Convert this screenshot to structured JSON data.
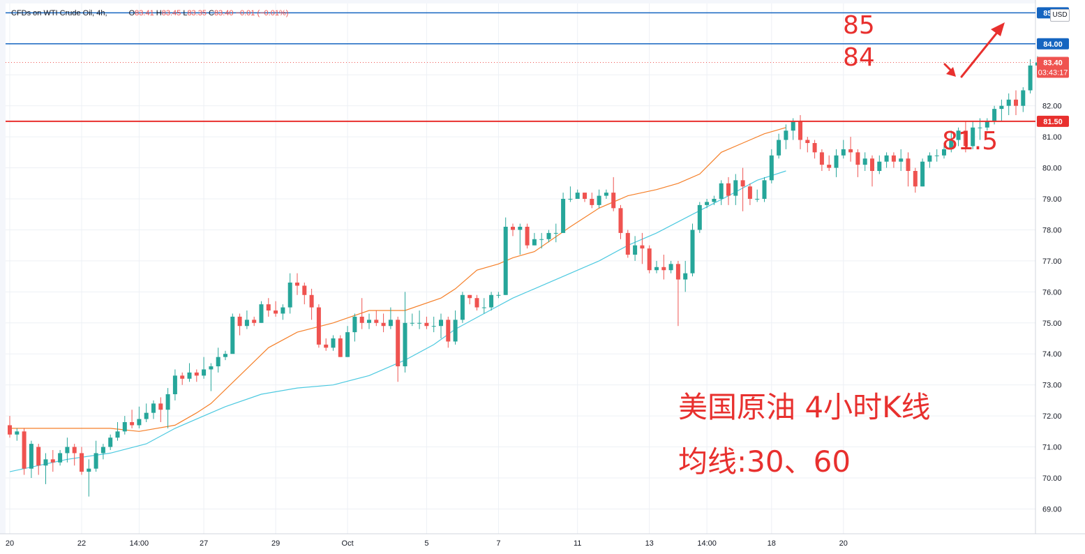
{
  "header": {
    "symbol": "CFDs on WTI Crude Oil, 4h,",
    "o_label": "O",
    "o_value": "83.41",
    "h_label": "H",
    "h_value": "83.45",
    "l_label": "L",
    "l_value": "83.35",
    "c_label": "C",
    "c_value": "83.40",
    "change": "−0.01 (−0.01%)"
  },
  "currency_label": "USD",
  "annotations": {
    "level_85": "85",
    "level_84": "84",
    "level_81_5": "81.5",
    "title_line1": "美国原油 4小时K线",
    "title_line2": "均线:30、60"
  },
  "price_tags": {
    "top_line": "85.00",
    "line_84": "84.00",
    "last_price": "83.40",
    "countdown": "03:43:17",
    "line_81_5": "81.50"
  },
  "colors": {
    "up": "#26a69a",
    "down": "#ef5350",
    "ma30": "#f57f28",
    "ma60": "#4cc9e0",
    "h_line_blue": "#1565c0",
    "h_line_red": "#e8302e",
    "annotation": "#e8302e"
  },
  "chart_data": {
    "type": "candlestick",
    "symbol": "CFDs on WTI Crude Oil",
    "timeframe": "4h",
    "y_axis": {
      "ticks": [
        "69.00",
        "70.00",
        "71.00",
        "72.00",
        "73.00",
        "74.00",
        "75.00",
        "76.00",
        "77.00",
        "78.00",
        "79.00",
        "80.00",
        "81.00",
        "82.00",
        "83.00"
      ],
      "range": [
        68.2,
        85.3
      ]
    },
    "x_axis": {
      "ticks": [
        {
          "label": "20",
          "index": 0
        },
        {
          "label": "22",
          "index": 10
        },
        {
          "label": "14:00",
          "index": 18
        },
        {
          "label": "27",
          "index": 27
        },
        {
          "label": "29",
          "index": 37
        },
        {
          "label": "Oct",
          "index": 47
        },
        {
          "label": "5",
          "index": 58
        },
        {
          "label": "7",
          "index": 68
        },
        {
          "label": "11",
          "index": 79
        },
        {
          "label": "13",
          "index": 89
        },
        {
          "label": "14:00",
          "index": 97
        },
        {
          "label": "18",
          "index": 106
        },
        {
          "label": "20",
          "index": 116
        }
      ]
    },
    "horizontal_lines": [
      {
        "value": 85.0,
        "color": "blue"
      },
      {
        "value": 84.0,
        "color": "blue"
      },
      {
        "value": 81.5,
        "color": "red"
      }
    ],
    "last_price": 83.4,
    "moving_averages": [
      {
        "period": 30,
        "color": "orange",
        "points": [
          [
            0,
            71.6
          ],
          [
            10,
            71.6
          ],
          [
            14,
            71.6
          ],
          [
            18,
            71.5
          ],
          [
            23,
            71.7
          ],
          [
            26,
            72.1
          ],
          [
            28,
            72.4
          ],
          [
            32,
            73.3
          ],
          [
            36,
            74.2
          ],
          [
            40,
            74.7
          ],
          [
            45,
            75.0
          ],
          [
            50,
            75.4
          ],
          [
            55,
            75.4
          ],
          [
            60,
            75.8
          ],
          [
            62,
            76.1
          ],
          [
            65,
            76.7
          ],
          [
            68,
            76.9
          ],
          [
            70,
            77.1
          ],
          [
            73,
            77.3
          ],
          [
            78,
            78.1
          ],
          [
            82,
            78.7
          ],
          [
            86,
            79.1
          ],
          [
            90,
            79.3
          ],
          [
            93,
            79.5
          ],
          [
            96,
            79.8
          ],
          [
            99,
            80.5
          ],
          [
            102,
            80.8
          ],
          [
            105,
            81.1
          ],
          [
            108,
            81.3
          ]
        ]
      },
      {
        "period": 60,
        "color": "cyan",
        "points": [
          [
            0,
            70.2
          ],
          [
            8,
            70.6
          ],
          [
            14,
            70.8
          ],
          [
            19,
            71.1
          ],
          [
            23,
            71.6
          ],
          [
            27,
            72.0
          ],
          [
            30,
            72.3
          ],
          [
            35,
            72.7
          ],
          [
            40,
            72.9
          ],
          [
            45,
            73.0
          ],
          [
            50,
            73.3
          ],
          [
            55,
            73.8
          ],
          [
            59,
            74.3
          ],
          [
            62,
            74.8
          ],
          [
            66,
            75.3
          ],
          [
            70,
            75.8
          ],
          [
            73,
            76.1
          ],
          [
            78,
            76.6
          ],
          [
            82,
            77.0
          ],
          [
            86,
            77.5
          ],
          [
            90,
            77.9
          ],
          [
            95,
            78.5
          ],
          [
            100,
            79.1
          ],
          [
            104,
            79.6
          ],
          [
            108,
            79.9
          ]
        ]
      }
    ],
    "candles": [
      [
        71.7,
        71.4,
        72.0,
        71.3
      ],
      [
        71.4,
        71.5,
        71.6,
        71.2
      ],
      [
        71.5,
        70.3,
        71.6,
        70.1
      ],
      [
        70.3,
        71.1,
        71.2,
        70.0
      ],
      [
        71.0,
        70.4,
        71.1,
        70.1
      ],
      [
        70.4,
        70.6,
        70.8,
        69.8
      ],
      [
        70.6,
        70.5,
        70.9,
        70.2
      ],
      [
        70.5,
        70.8,
        70.9,
        70.4
      ],
      [
        70.8,
        71.0,
        71.3,
        70.5
      ],
      [
        71.0,
        70.8,
        71.1,
        70.4
      ],
      [
        70.8,
        70.2,
        71.0,
        70.1
      ],
      [
        70.2,
        70.3,
        70.6,
        69.4
      ],
      [
        70.3,
        70.8,
        71.2,
        70.2
      ],
      [
        70.8,
        71.0,
        71.1,
        70.6
      ],
      [
        71.0,
        71.3,
        71.4,
        70.9
      ],
      [
        71.3,
        71.5,
        71.8,
        71.2
      ],
      [
        71.5,
        71.8,
        72.0,
        71.4
      ],
      [
        71.8,
        71.7,
        72.2,
        71.6
      ],
      [
        71.7,
        71.9,
        72.3,
        71.6
      ],
      [
        71.9,
        72.1,
        72.4,
        71.8
      ],
      [
        72.1,
        72.4,
        72.5,
        71.9
      ],
      [
        72.4,
        72.2,
        72.6,
        71.8
      ],
      [
        72.2,
        72.7,
        72.9,
        71.6
      ],
      [
        72.7,
        73.3,
        73.5,
        72.5
      ],
      [
        73.3,
        73.2,
        73.4,
        73.0
      ],
      [
        73.2,
        73.4,
        73.7,
        73.1
      ],
      [
        73.4,
        73.3,
        73.5,
        73.1
      ],
      [
        73.3,
        73.5,
        73.9,
        73.2
      ],
      [
        73.5,
        73.6,
        73.7,
        72.8
      ],
      [
        73.6,
        73.9,
        74.2,
        73.4
      ],
      [
        73.9,
        74.0,
        74.1,
        73.8
      ],
      [
        74.0,
        75.2,
        75.3,
        74.1
      ],
      [
        75.2,
        74.9,
        75.3,
        74.6
      ],
      [
        74.9,
        75.1,
        75.4,
        74.8
      ],
      [
        75.1,
        75.0,
        75.2,
        74.9
      ],
      [
        75.0,
        75.6,
        75.7,
        75.0
      ],
      [
        75.6,
        75.4,
        75.8,
        75.2
      ],
      [
        75.4,
        75.3,
        75.7,
        75.2
      ],
      [
        75.3,
        75.5,
        75.6,
        75.1
      ],
      [
        75.5,
        76.3,
        76.6,
        75.3
      ],
      [
        76.3,
        76.2,
        76.6,
        75.9
      ],
      [
        76.2,
        75.9,
        76.3,
        75.6
      ],
      [
        75.9,
        75.5,
        76.1,
        75.1
      ],
      [
        75.5,
        74.3,
        75.6,
        74.2
      ],
      [
        74.3,
        74.2,
        74.5,
        74.1
      ],
      [
        74.2,
        74.5,
        74.6,
        74.1
      ],
      [
        74.5,
        73.9,
        74.6,
        73.9
      ],
      [
        73.9,
        74.7,
        74.9,
        73.9
      ],
      [
        74.7,
        75.2,
        75.3,
        74.4
      ],
      [
        75.2,
        75.0,
        75.8,
        74.8
      ],
      [
        75.0,
        75.1,
        75.3,
        74.8
      ],
      [
        75.1,
        75.0,
        75.4,
        74.9
      ],
      [
        75.0,
        74.9,
        75.3,
        74.7
      ],
      [
        74.9,
        75.1,
        75.5,
        74.8
      ],
      [
        75.1,
        73.6,
        75.2,
        73.1
      ],
      [
        73.6,
        75.0,
        76.0,
        73.4
      ],
      [
        75.0,
        75.0,
        75.3,
        74.9
      ],
      [
        75.0,
        75.0,
        75.4,
        74.8
      ],
      [
        75.0,
        74.9,
        75.2,
        74.8
      ],
      [
        74.9,
        74.9,
        75.2,
        74.7
      ],
      [
        74.9,
        75.1,
        75.3,
        74.5
      ],
      [
        75.1,
        74.4,
        75.2,
        74.2
      ],
      [
        74.4,
        75.1,
        75.4,
        74.3
      ],
      [
        75.1,
        75.9,
        76.0,
        75.0
      ],
      [
        75.9,
        75.8,
        75.9,
        75.6
      ],
      [
        75.8,
        75.5,
        75.9,
        75.4
      ],
      [
        75.5,
        75.5,
        75.8,
        75.3
      ],
      [
        75.5,
        75.9,
        76.0,
        75.4
      ],
      [
        75.9,
        75.9,
        76.0,
        75.8
      ],
      [
        75.9,
        78.1,
        78.4,
        75.9
      ],
      [
        78.1,
        78.0,
        78.2,
        77.8
      ],
      [
        78.0,
        78.1,
        78.2,
        77.2
      ],
      [
        78.1,
        77.5,
        78.2,
        77.4
      ],
      [
        77.5,
        77.7,
        77.9,
        77.5
      ],
      [
        77.7,
        77.7,
        77.9,
        77.4
      ],
      [
        77.7,
        77.9,
        78.0,
        77.6
      ],
      [
        77.9,
        77.9,
        78.2,
        77.6
      ],
      [
        77.9,
        79.0,
        79.2,
        77.9
      ],
      [
        79.0,
        79.0,
        79.4,
        78.9
      ],
      [
        79.0,
        79.2,
        79.3,
        79.0
      ],
      [
        79.2,
        79.0,
        79.2,
        78.9
      ],
      [
        79.0,
        78.8,
        79.2,
        78.7
      ],
      [
        78.8,
        79.1,
        79.3,
        78.7
      ],
      [
        79.1,
        79.2,
        79.3,
        79.0
      ],
      [
        79.2,
        78.7,
        79.7,
        78.6
      ],
      [
        78.7,
        77.9,
        78.8,
        77.7
      ],
      [
        77.9,
        77.2,
        78.0,
        77.1
      ],
      [
        77.2,
        77.5,
        77.8,
        77.0
      ],
      [
        77.5,
        77.4,
        77.9,
        76.9
      ],
      [
        77.4,
        76.7,
        77.5,
        76.6
      ],
      [
        76.7,
        76.8,
        77.0,
        76.6
      ],
      [
        76.8,
        76.7,
        77.2,
        76.4
      ],
      [
        76.7,
        76.9,
        77.0,
        76.6
      ],
      [
        76.9,
        76.4,
        77.0,
        74.9
      ],
      [
        76.4,
        76.6,
        77.0,
        76.0
      ],
      [
        76.6,
        78.0,
        78.2,
        76.5
      ],
      [
        78.0,
        78.8,
        78.9,
        77.9
      ],
      [
        78.8,
        78.9,
        79.0,
        78.7
      ],
      [
        78.9,
        79.0,
        79.1,
        78.8
      ],
      [
        79.0,
        79.5,
        79.6,
        78.8
      ],
      [
        79.5,
        79.1,
        79.7,
        78.8
      ],
      [
        79.1,
        79.6,
        79.8,
        78.8
      ],
      [
        79.6,
        79.4,
        80.0,
        78.6
      ],
      [
        79.4,
        79.0,
        79.5,
        78.8
      ],
      [
        79.0,
        79.0,
        79.3,
        78.9
      ],
      [
        79.0,
        79.6,
        79.7,
        78.9
      ],
      [
        79.6,
        80.4,
        80.6,
        79.5
      ],
      [
        80.4,
        80.9,
        81.1,
        80.3
      ],
      [
        80.9,
        81.2,
        81.4,
        80.6
      ],
      [
        81.2,
        81.5,
        81.6,
        80.9
      ]
    ],
    "candles_tail": [
      [
        81.5,
        80.9,
        81.7,
        80.6
      ],
      [
        80.9,
        80.8,
        81.0,
        80.5
      ],
      [
        80.8,
        80.5,
        80.9,
        80.3
      ],
      [
        80.5,
        80.1,
        80.6,
        79.9
      ],
      [
        80.1,
        80.0,
        80.4,
        79.9
      ],
      [
        80.0,
        80.4,
        80.6,
        79.7
      ],
      [
        80.4,
        80.6,
        80.9,
        80.3
      ],
      [
        80.6,
        80.5,
        81.0,
        80.2
      ],
      [
        80.5,
        80.1,
        80.6,
        79.7
      ],
      [
        80.1,
        80.3,
        80.5,
        79.9
      ],
      [
        80.3,
        79.9,
        80.4,
        79.4
      ],
      [
        79.9,
        80.2,
        80.4,
        79.8
      ],
      [
        80.2,
        80.4,
        80.5,
        80.0
      ],
      [
        80.4,
        80.2,
        80.5,
        80.0
      ],
      [
        80.2,
        80.3,
        80.6,
        79.9
      ],
      [
        80.3,
        79.9,
        80.5,
        79.4
      ],
      [
        79.9,
        79.4,
        80.0,
        79.2
      ],
      [
        79.4,
        80.2,
        80.3,
        79.4
      ],
      [
        80.2,
        80.4,
        80.5,
        80.0
      ],
      [
        80.4,
        80.4,
        80.6,
        80.2
      ],
      [
        80.4,
        80.6,
        80.8,
        80.3
      ],
      [
        80.6,
        80.9,
        81.2,
        80.5
      ],
      [
        80.9,
        81.2,
        81.3,
        80.7
      ],
      [
        81.2,
        80.7,
        81.5,
        80.5
      ],
      [
        80.7,
        81.3,
        81.5,
        80.6
      ],
      [
        81.3,
        81.3,
        81.6,
        80.9
      ],
      [
        81.3,
        81.5,
        81.6,
        81.2
      ],
      [
        81.5,
        81.9,
        82.0,
        81.4
      ],
      [
        81.9,
        82.0,
        82.2,
        81.5
      ],
      [
        82.0,
        82.2,
        82.4,
        81.7
      ],
      [
        82.2,
        82.0,
        82.5,
        81.7
      ],
      [
        82.0,
        82.5,
        82.6,
        81.8
      ],
      [
        82.5,
        83.3,
        83.5,
        82.4
      ],
      [
        83.3,
        83.4,
        83.6,
        83.2
      ],
      [
        83.41,
        83.4,
        83.45,
        83.35
      ]
    ]
  }
}
